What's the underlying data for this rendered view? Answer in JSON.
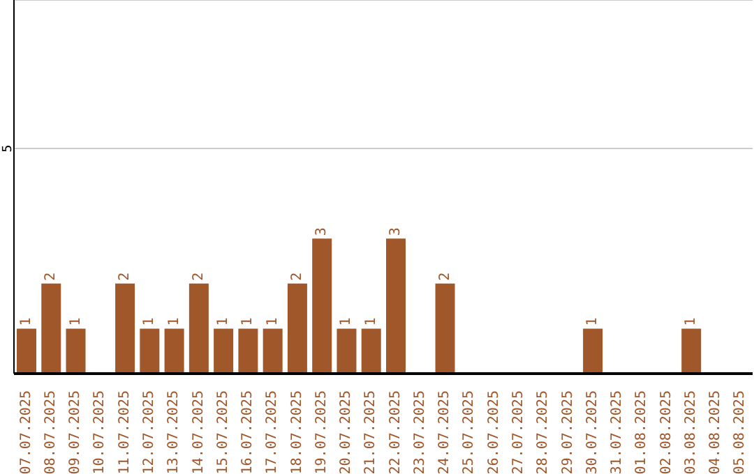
{
  "chart_data": {
    "type": "bar",
    "categories": [
      "07.07.2025",
      "08.07.2025",
      "09.07.2025",
      "10.07.2025",
      "11.07.2025",
      "12.07.2025",
      "13.07.2025",
      "14.07.2025",
      "15.07.2025",
      "16.07.2025",
      "17.07.2025",
      "18.07.2025",
      "19.07.2025",
      "20.07.2025",
      "21.07.2025",
      "22.07.2025",
      "23.07.2025",
      "24.07.2025",
      "25.07.2025",
      "26.07.2025",
      "27.07.2025",
      "28.07.2025",
      "29.07.2025",
      "30.07.2025",
      "31.07.2025",
      "01.08.2025",
      "02.08.2025",
      "03.08.2025",
      "04.08.2025",
      "05.08.2025"
    ],
    "values": [
      1,
      2,
      1,
      0,
      2,
      1,
      1,
      2,
      1,
      1,
      1,
      2,
      3,
      1,
      1,
      3,
      0,
      2,
      0,
      0,
      0,
      0,
      0,
      1,
      0,
      0,
      0,
      1,
      0,
      0
    ],
    "value_labels": [
      "1",
      "2",
      "1",
      null,
      "2",
      "1",
      "1",
      "2",
      "1",
      "1",
      "1",
      "2",
      "3",
      "1",
      "1",
      "3",
      null,
      "2",
      null,
      null,
      null,
      null,
      null,
      "1",
      null,
      null,
      null,
      "1",
      null,
      null
    ],
    "color": "#a0572a",
    "ylim": [
      0,
      8.3
    ],
    "yticks": [
      5
    ],
    "grid": "y"
  }
}
